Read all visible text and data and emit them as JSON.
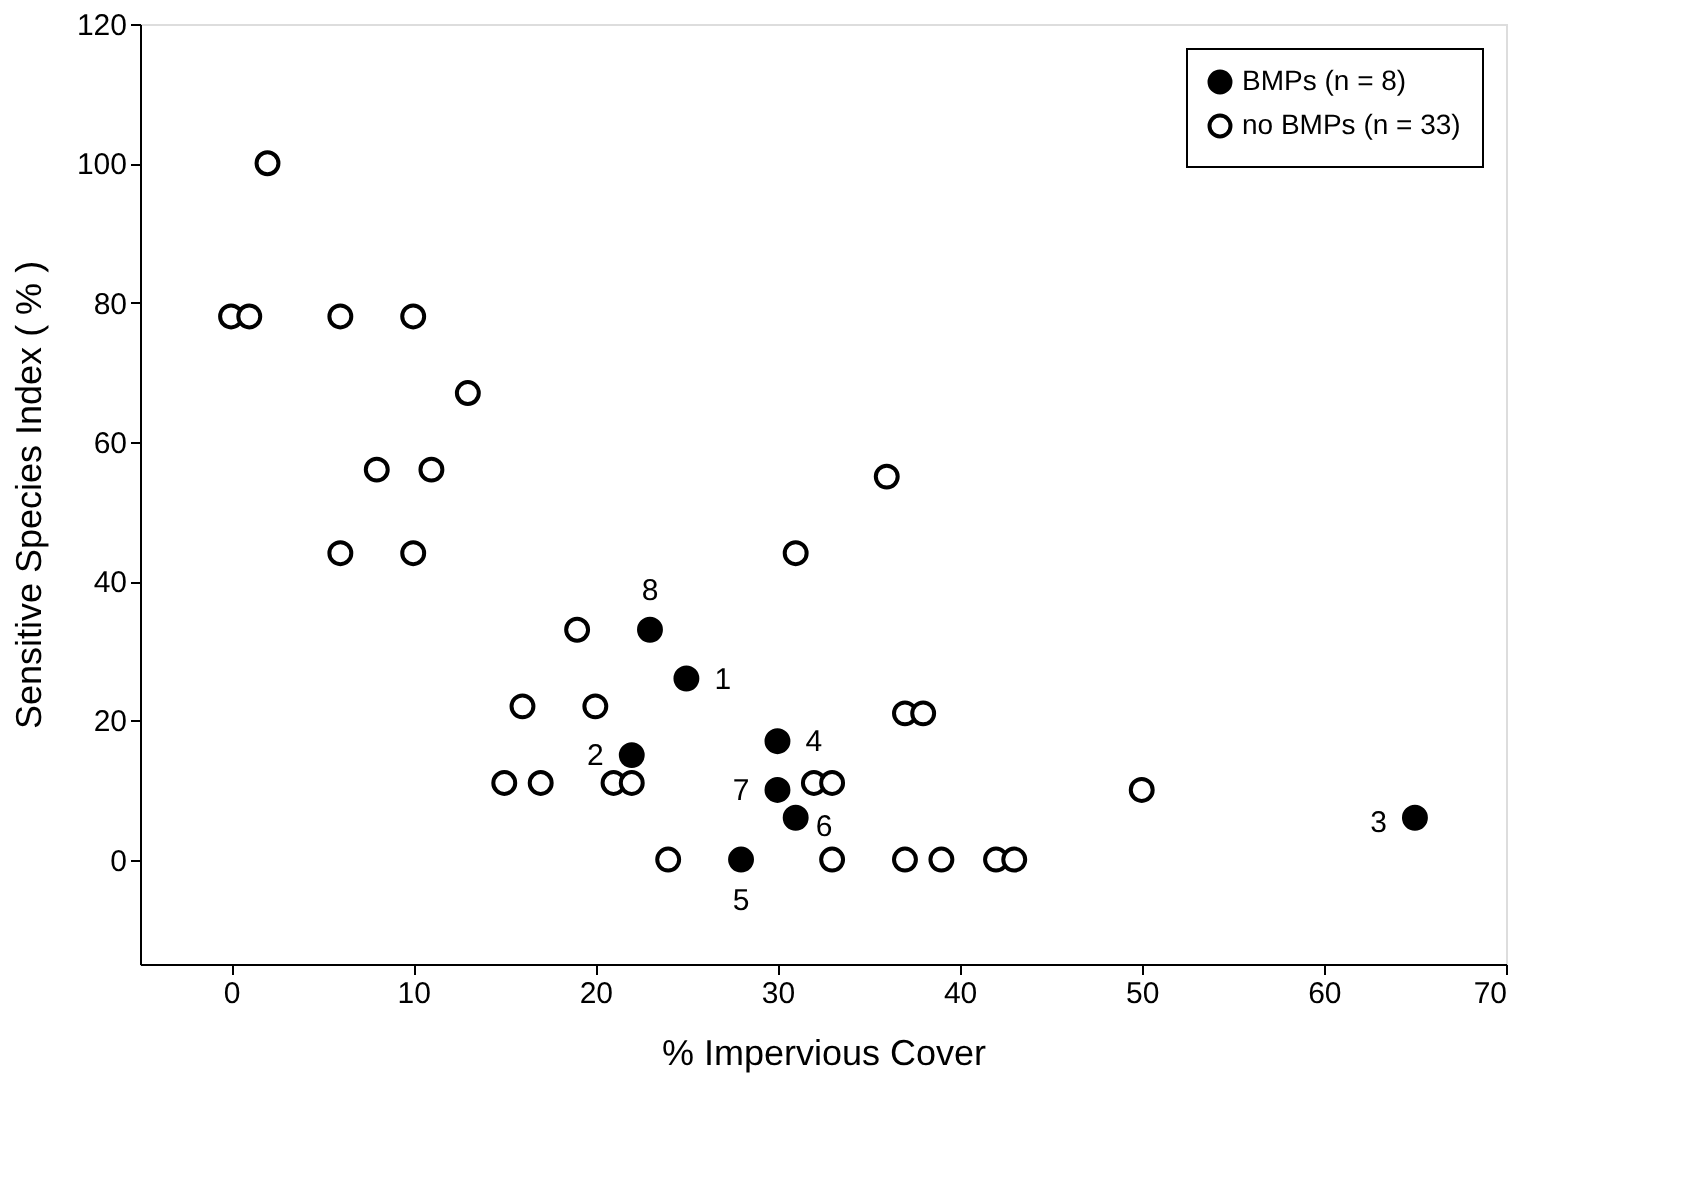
{
  "chart_data": {
    "type": "scatter",
    "xlabel": "% Impervious Cover",
    "ylabel": "Sensitive Species Index ( % )",
    "xlim": [
      -5,
      70
    ],
    "xticks": [
      0,
      10,
      20,
      30,
      40,
      50,
      60,
      70
    ],
    "ylim": [
      -15,
      120
    ],
    "yticks": [
      0,
      20,
      40,
      60,
      80,
      100,
      120
    ],
    "grid": false,
    "legend": "top right",
    "marker": "circle",
    "series": [
      {
        "name": "BMPs (n = 8)",
        "color": "#000000",
        "x": [
          25,
          22,
          65,
          30,
          28,
          31,
          30,
          23
        ],
        "values": [
          26,
          15,
          6,
          17,
          0,
          6,
          10,
          33
        ]
      },
      {
        "name": "no BMPs (n = 33)",
        "color": "#ffffff",
        "x": [
          2,
          0,
          1,
          6,
          10,
          13,
          8,
          11,
          6,
          10,
          19,
          16,
          20,
          15,
          17,
          21,
          22,
          24,
          32,
          33,
          33,
          37,
          39,
          42,
          43,
          36,
          31,
          37,
          38,
          50
        ],
        "values": [
          100,
          78,
          78,
          78,
          78,
          67,
          56,
          56,
          44,
          44,
          33,
          22,
          22,
          11,
          11,
          11,
          11,
          0,
          11,
          11,
          0,
          0,
          0,
          0,
          0,
          55,
          44,
          21,
          21,
          10
        ]
      }
    ],
    "annotations": [
      {
        "text": "1",
        "x": 25,
        "y": 26
      },
      {
        "text": "2",
        "x": 22,
        "y": 15
      },
      {
        "text": "3",
        "x": 65,
        "y": 6
      },
      {
        "text": "4",
        "x": 30,
        "y": 17
      },
      {
        "text": "5",
        "x": 28,
        "y": 0
      },
      {
        "text": "6",
        "x": 31,
        "y": 6
      },
      {
        "text": "7",
        "x": 30,
        "y": 10
      },
      {
        "text": "8",
        "x": 23,
        "y": 33
      }
    ]
  }
}
